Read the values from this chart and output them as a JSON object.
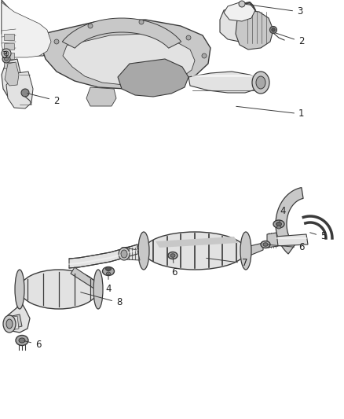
{
  "background_color": "#ffffff",
  "fig_width": 4.38,
  "fig_height": 5.33,
  "dpi": 100,
  "line_color": "#3a3a3a",
  "text_color": "#222222",
  "label_fontsize": 8.5,
  "fill_vlight": "#f0f0f0",
  "fill_light": "#e2e2e2",
  "fill_mid": "#c8c8c8",
  "fill_dark": "#a8a8a8",
  "fill_darker": "#888888"
}
